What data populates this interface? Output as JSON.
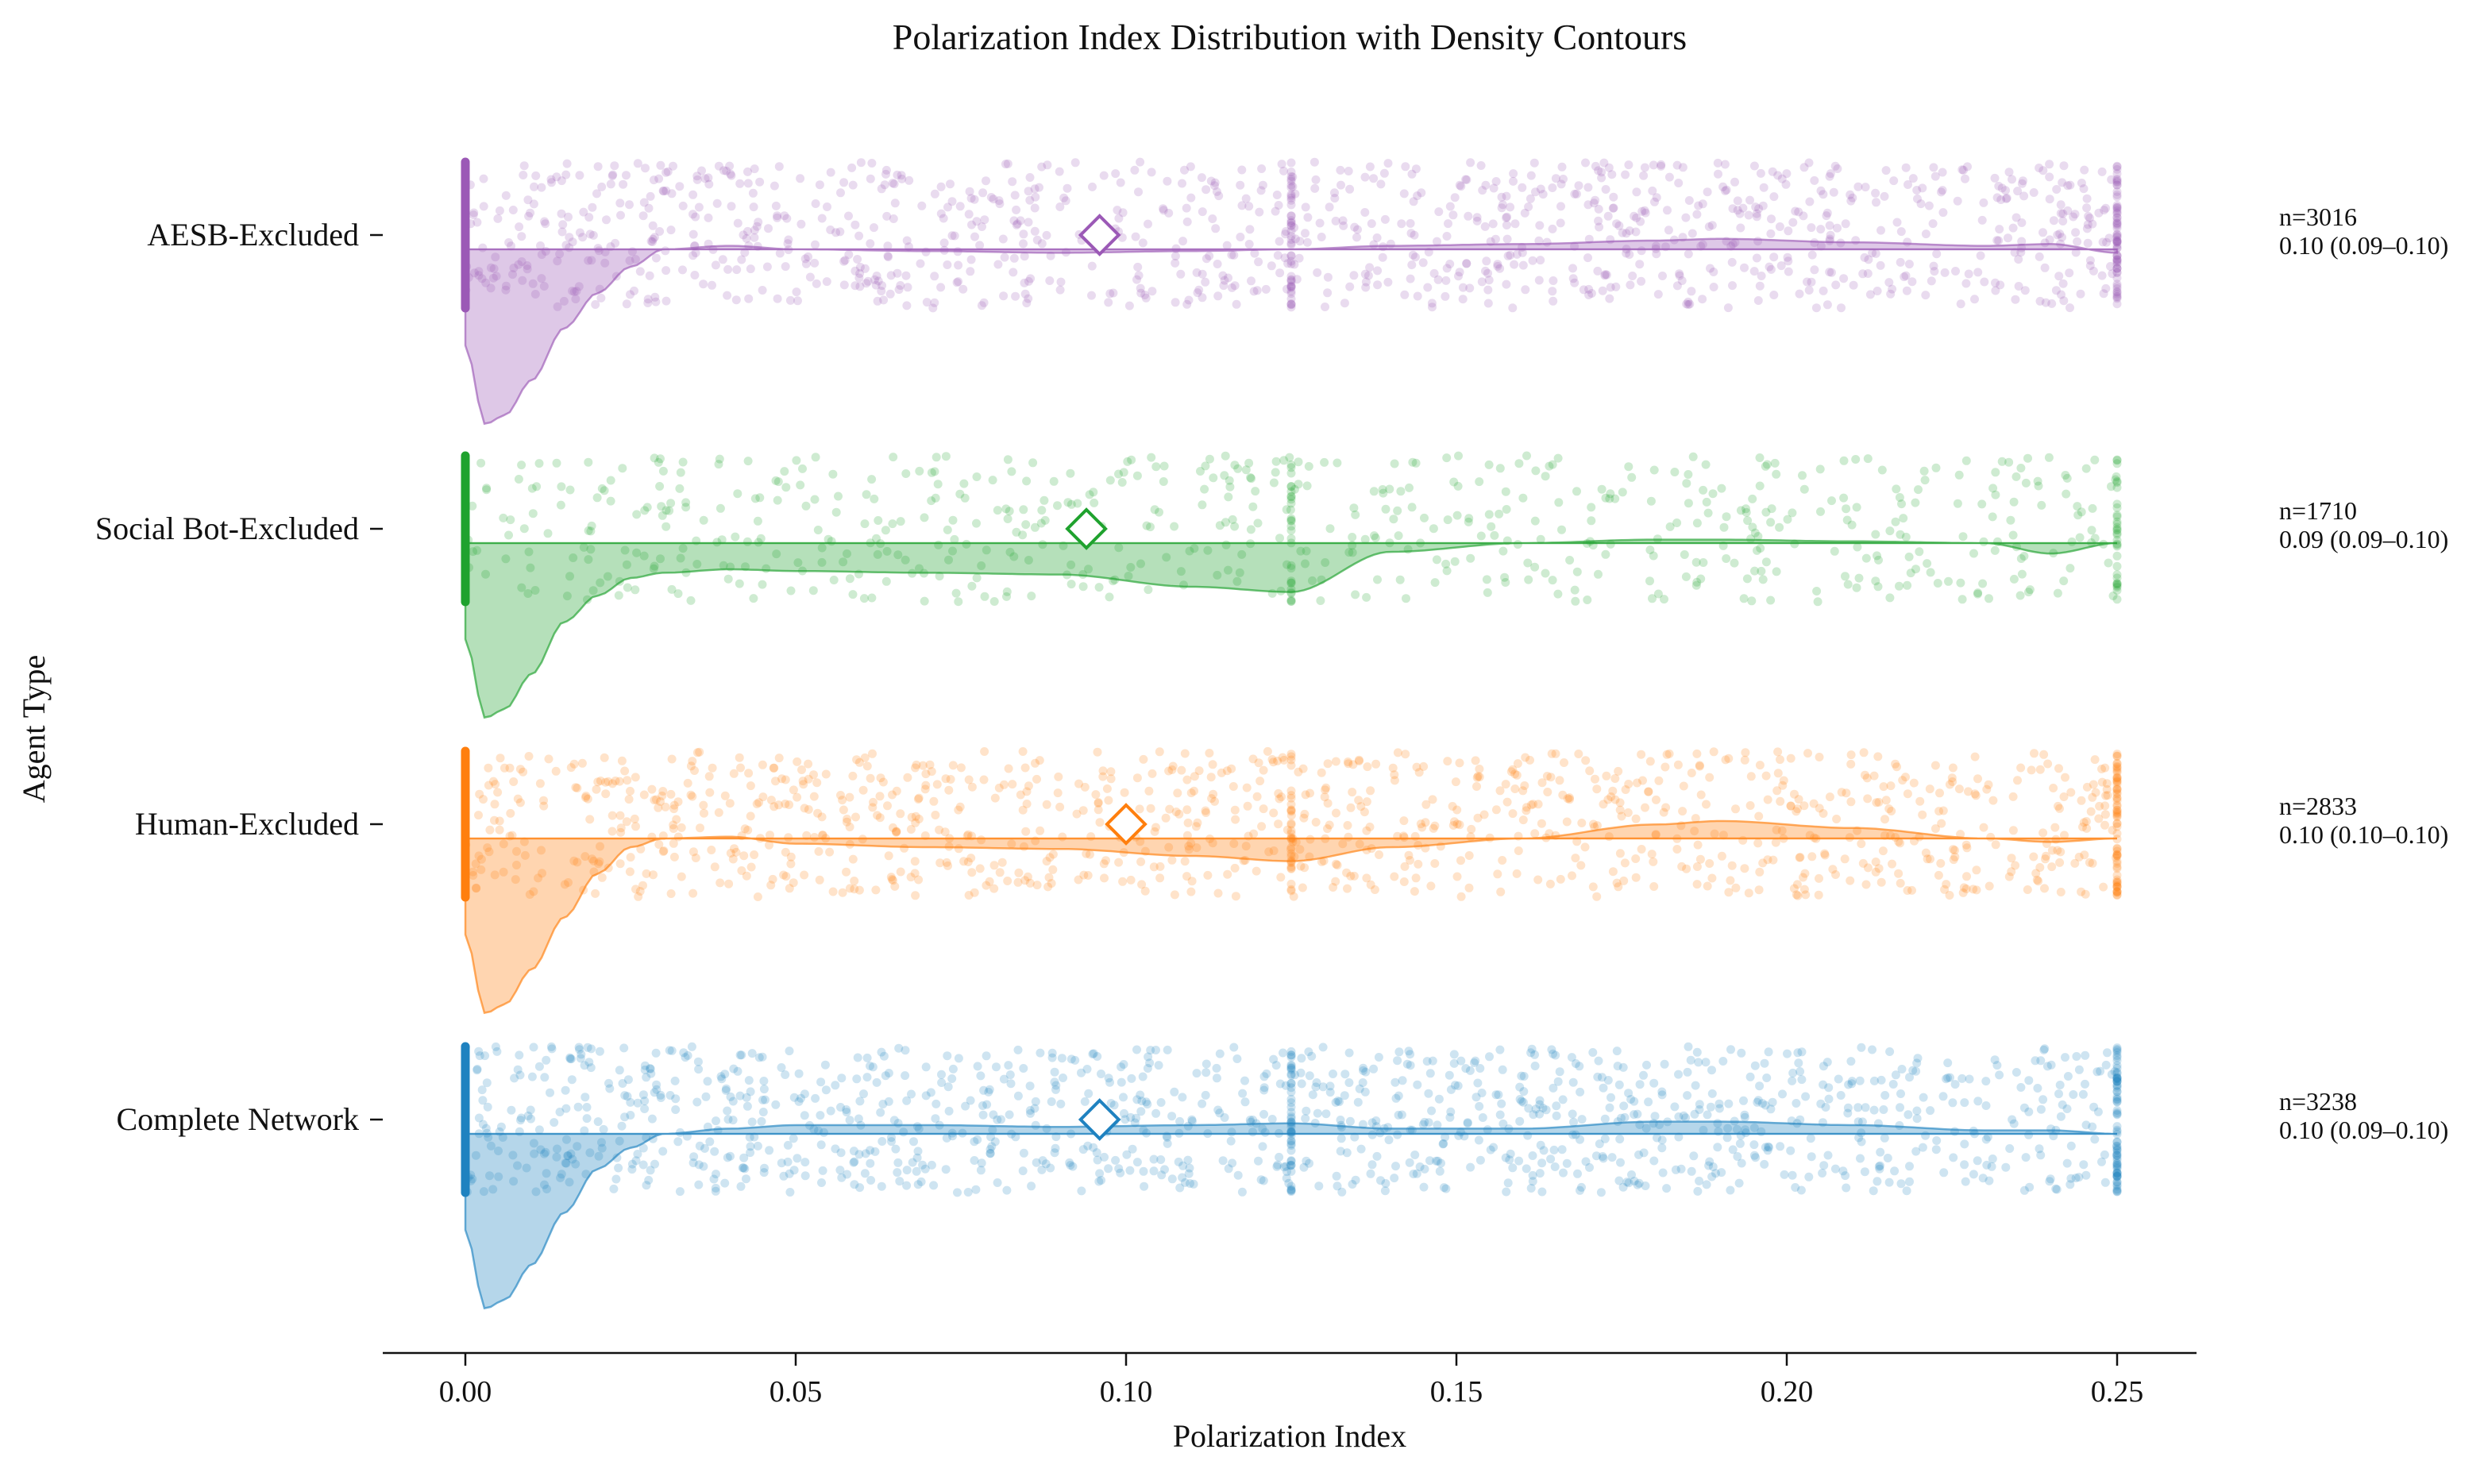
{
  "chart_data": {
    "type": "raincloud",
    "title": "Polarization Index Distribution with Density Contours",
    "xlabel": "Polarization Index",
    "ylabel": "Agent Type",
    "xlim": [
      -0.0125,
      0.2625
    ],
    "xticks": [
      0.0,
      0.05,
      0.1,
      0.15,
      0.2,
      0.25
    ],
    "xtick_labels": [
      "0.00",
      "0.05",
      "0.10",
      "0.15",
      "0.20",
      "0.25"
    ],
    "grid": false,
    "categories": [
      "AESB-Excluded",
      "Social Bot-Excluded",
      "Human-Excluded",
      "Complete Network"
    ],
    "series": [
      {
        "name": "AESB-Excluded",
        "color": "#9b59b6",
        "n": 3016,
        "median": 0.096,
        "range_lo": 0.0,
        "range_hi": 0.25,
        "annotation_n": "n=3016",
        "annotation_stat": "0.10 (0.09–0.10)",
        "density_x": [
          0.0,
          0.003,
          0.006,
          0.01,
          0.015,
          0.02,
          0.025,
          0.03,
          0.04,
          0.05,
          0.07,
          0.09,
          0.11,
          0.125,
          0.14,
          0.16,
          0.18,
          0.19,
          0.21,
          0.23,
          0.24,
          0.25
        ],
        "density_y": [
          0.55,
          1.0,
          0.95,
          0.75,
          0.45,
          0.25,
          0.1,
          0.0,
          -0.02,
          0.0,
          0.01,
          0.02,
          0.01,
          0.0,
          -0.02,
          -0.03,
          -0.05,
          -0.06,
          -0.04,
          -0.02,
          -0.03,
          0.02
        ]
      },
      {
        "name": "Social Bot-Excluded",
        "color": "#1fa22e",
        "n": 1710,
        "median": 0.094,
        "range_lo": 0.0,
        "range_hi": 0.25,
        "annotation_n": "n=1710",
        "annotation_stat": "0.09 (0.09–0.10)",
        "density_x": [
          0.0,
          0.003,
          0.006,
          0.01,
          0.015,
          0.02,
          0.025,
          0.03,
          0.04,
          0.05,
          0.07,
          0.09,
          0.11,
          0.125,
          0.14,
          0.16,
          0.18,
          0.19,
          0.21,
          0.23,
          0.24,
          0.25
        ],
        "density_y": [
          0.55,
          1.0,
          0.95,
          0.75,
          0.45,
          0.3,
          0.2,
          0.17,
          0.15,
          0.16,
          0.17,
          0.18,
          0.25,
          0.28,
          0.05,
          0.0,
          -0.02,
          -0.02,
          -0.01,
          0.0,
          0.06,
          0.0
        ]
      },
      {
        "name": "Human-Excluded",
        "color": "#ff7f0e",
        "n": 2833,
        "median": 0.1,
        "range_lo": 0.0,
        "range_hi": 0.25,
        "annotation_n": "n=2833",
        "annotation_stat": "0.10 (0.10–0.10)",
        "density_x": [
          0.0,
          0.003,
          0.006,
          0.01,
          0.015,
          0.02,
          0.025,
          0.03,
          0.04,
          0.05,
          0.07,
          0.09,
          0.11,
          0.125,
          0.14,
          0.16,
          0.18,
          0.19,
          0.21,
          0.23,
          0.24,
          0.25
        ],
        "density_y": [
          0.55,
          1.0,
          0.95,
          0.75,
          0.45,
          0.2,
          0.05,
          0.0,
          -0.01,
          0.03,
          0.05,
          0.06,
          0.1,
          0.13,
          0.05,
          0.0,
          -0.08,
          -0.1,
          -0.06,
          0.0,
          0.02,
          0.0
        ]
      },
      {
        "name": "Complete Network",
        "color": "#1f82c0",
        "n": 3238,
        "median": 0.096,
        "range_lo": 0.0,
        "range_hi": 0.25,
        "annotation_n": "n=3238",
        "annotation_stat": "0.10 (0.09–0.10)",
        "density_x": [
          0.0,
          0.003,
          0.006,
          0.01,
          0.015,
          0.02,
          0.025,
          0.03,
          0.04,
          0.05,
          0.07,
          0.09,
          0.11,
          0.125,
          0.14,
          0.16,
          0.18,
          0.19,
          0.21,
          0.23,
          0.24,
          0.25
        ],
        "density_y": [
          0.55,
          1.0,
          0.95,
          0.75,
          0.45,
          0.2,
          0.08,
          0.0,
          -0.03,
          -0.05,
          -0.05,
          -0.04,
          -0.05,
          -0.06,
          -0.03,
          -0.03,
          -0.07,
          -0.07,
          -0.05,
          -0.02,
          -0.02,
          0.0
        ]
      }
    ]
  }
}
